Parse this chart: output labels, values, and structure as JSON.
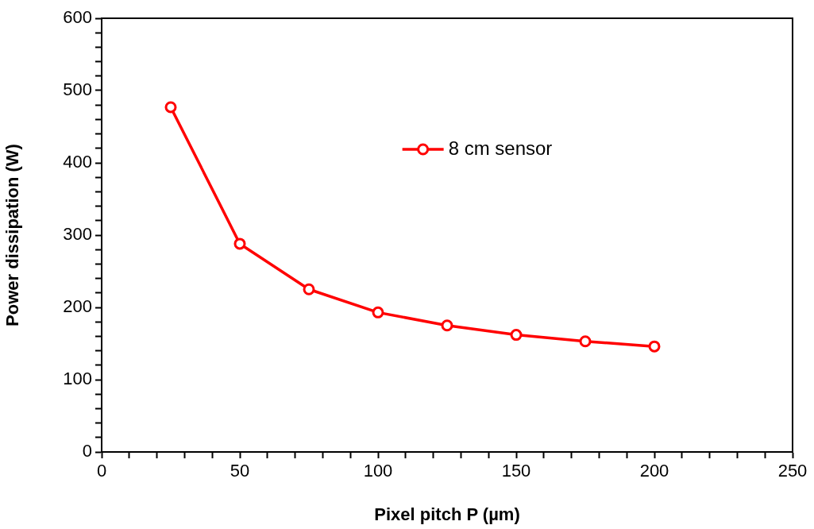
{
  "chart_data": {
    "type": "line",
    "xlabel": "Pixel pitch P (µm)",
    "ylabel": "Power dissipation (W)",
    "x": [
      25,
      50,
      75,
      100,
      125,
      150,
      175,
      200
    ],
    "series": [
      {
        "name": "8 cm sensor",
        "color": "#ff0000",
        "values": [
          477,
          288,
          225,
          193,
          175,
          162,
          153,
          146
        ]
      }
    ],
    "xlim": [
      0,
      250
    ],
    "xticks": [
      0,
      {
        "value": 10,
        "label": null
      },
      {
        "value": 20,
        "label": null
      },
      {
        "value": 30,
        "label": null
      },
      {
        "value": 40,
        "label": null
      },
      50,
      {
        "value": 60,
        "label": null
      },
      {
        "value": 70,
        "label": null
      },
      {
        "value": 80,
        "label": null
      },
      {
        "value": 90,
        "label": null
      },
      100,
      {
        "value": 110,
        "label": null
      },
      {
        "value": 120,
        "label": null
      },
      {
        "value": 130,
        "label": null
      },
      {
        "value": 140,
        "label": null
      },
      150,
      {
        "value": 160,
        "label": null
      },
      {
        "value": 170,
        "label": null
      },
      {
        "value": 180,
        "label": null
      },
      {
        "value": 190,
        "label": null
      },
      200,
      {
        "value": 210,
        "label": null
      },
      {
        "value": 220,
        "label": null
      },
      {
        "value": 230,
        "label": null
      },
      {
        "value": 240,
        "label": null
      },
      250
    ],
    "ylim": [
      0,
      600
    ],
    "yticks": [
      0,
      {
        "value": 20,
        "label": null
      },
      {
        "value": 40,
        "label": null
      },
      {
        "value": 60,
        "label": null
      },
      {
        "value": 80,
        "label": null
      },
      100,
      {
        "value": 120,
        "label": null
      },
      {
        "value": 140,
        "label": null
      },
      {
        "value": 160,
        "label": null
      },
      {
        "value": 180,
        "label": null
      },
      200,
      {
        "value": 220,
        "label": null
      },
      {
        "value": 240,
        "label": null
      },
      {
        "value": 260,
        "label": null
      },
      {
        "value": 280,
        "label": null
      },
      300,
      {
        "value": 320,
        "label": null
      },
      {
        "value": 340,
        "label": null
      },
      {
        "value": 360,
        "label": null
      },
      {
        "value": 380,
        "label": null
      },
      400,
      {
        "value": 420,
        "label": null
      },
      {
        "value": 440,
        "label": null
      },
      {
        "value": 460,
        "label": null
      },
      {
        "value": 480,
        "label": null
      },
      500,
      {
        "value": 520,
        "label": null
      },
      {
        "value": 540,
        "label": null
      },
      {
        "value": 560,
        "label": null
      },
      {
        "value": 580,
        "label": null
      },
      600
    ],
    "grid": false,
    "legend": "top",
    "marker": "circle",
    "line_style": "solid"
  }
}
